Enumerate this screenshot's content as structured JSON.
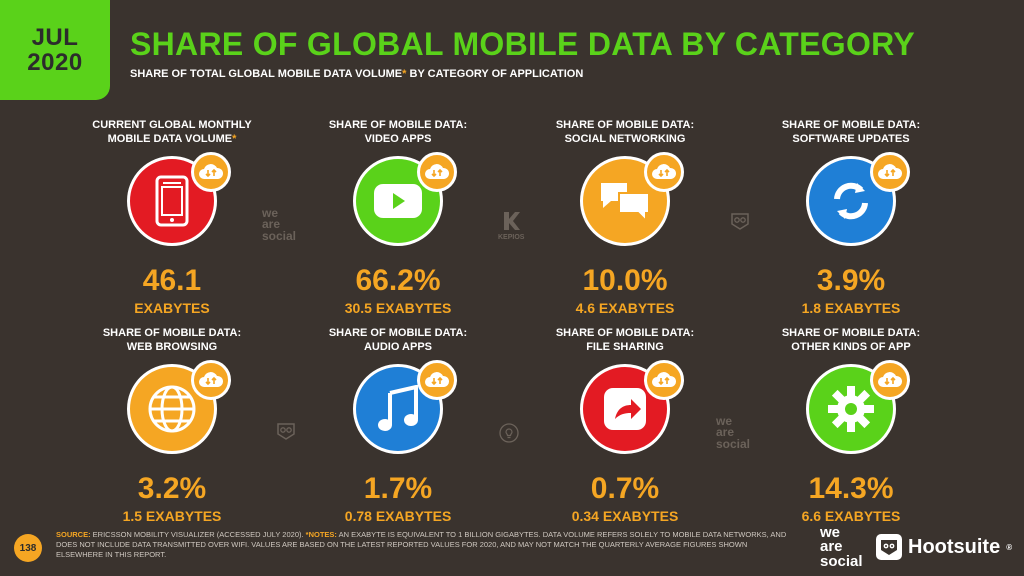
{
  "badge": {
    "month": "JUL",
    "year": "2020"
  },
  "header": {
    "title": "SHARE OF GLOBAL MOBILE DATA BY CATEGORY",
    "subtitle_pre": "SHARE OF TOTAL GLOBAL MOBILE DATA VOLUME",
    "subtitle_star": "*",
    "subtitle_post": " BY CATEGORY OF APPLICATION"
  },
  "cards": [
    {
      "line1": "CURRENT GLOBAL MONTHLY",
      "line2": "MOBILE DATA VOLUME",
      "star": "*",
      "value": "46.1",
      "unit": "EXABYTES",
      "color": "#e31b23",
      "icon": "smartphone-icon"
    },
    {
      "line1": "SHARE OF MOBILE DATA:",
      "line2": "VIDEO APPS",
      "star": "",
      "value": "66.2%",
      "unit": "30.5 EXABYTES",
      "color": "#5ad21a",
      "icon": "play-button-icon"
    },
    {
      "line1": "SHARE OF MOBILE DATA:",
      "line2": "SOCIAL NETWORKING",
      "star": "",
      "value": "10.0%",
      "unit": "4.6 EXABYTES",
      "color": "#f5a623",
      "icon": "chat-bubbles-icon"
    },
    {
      "line1": "SHARE OF MOBILE DATA:",
      "line2": "SOFTWARE UPDATES",
      "star": "",
      "value": "3.9%",
      "unit": "1.8 EXABYTES",
      "color": "#1f7fd6",
      "icon": "refresh-icon"
    },
    {
      "line1": "SHARE OF MOBILE DATA:",
      "line2": "WEB BROWSING",
      "star": "",
      "value": "3.2%",
      "unit": "1.5 EXABYTES",
      "color": "#f5a623",
      "icon": "globe-icon"
    },
    {
      "line1": "SHARE OF MOBILE DATA:",
      "line2": "AUDIO APPS",
      "star": "",
      "value": "1.7%",
      "unit": "0.78 EXABYTES",
      "color": "#1f7fd6",
      "icon": "music-note-icon"
    },
    {
      "line1": "SHARE OF MOBILE DATA:",
      "line2": "FILE SHARING",
      "star": "",
      "value": "0.7%",
      "unit": "0.34 EXABYTES",
      "color": "#e31b23",
      "icon": "share-arrow-icon"
    },
    {
      "line1": "SHARE OF MOBILE DATA:",
      "line2": "OTHER KINDS OF APP",
      "star": "",
      "value": "14.3%",
      "unit": "6.6 EXABYTES",
      "color": "#5ad21a",
      "icon": "gear-icon"
    }
  ],
  "watermarks": {
    "was_line1": "we",
    "was_line2": "are",
    "was_line3": "social",
    "kepios": "KEPIOS"
  },
  "footer": {
    "page": "138",
    "source_key": "SOURCE:",
    "source_text": " ERICSSON MOBILITY VISUALIZER (ACCESSED JULY 2020). ",
    "notes_key": "*NOTES:",
    "notes_text": " AN EXABYTE IS EQUIVALENT TO 1 BILLION GIGABYTES. DATA VOLUME REFERS SOLELY TO MOBILE DATA NETWORKS, AND DOES NOT INCLUDE DATA TRANSMITTED OVER WIFI. VALUES ARE BASED ON THE LATEST REPORTED VALUES FOR 2020, AND MAY NOT MATCH THE QUARTERLY AVERAGE FIGURES SHOWN ELSEWHERE IN THIS REPORT.",
    "brand_was_1": "we",
    "brand_was_2": "are",
    "brand_was_3": "social",
    "brand_hootsuite": "Hootsuite",
    "brand_reg": "®"
  }
}
